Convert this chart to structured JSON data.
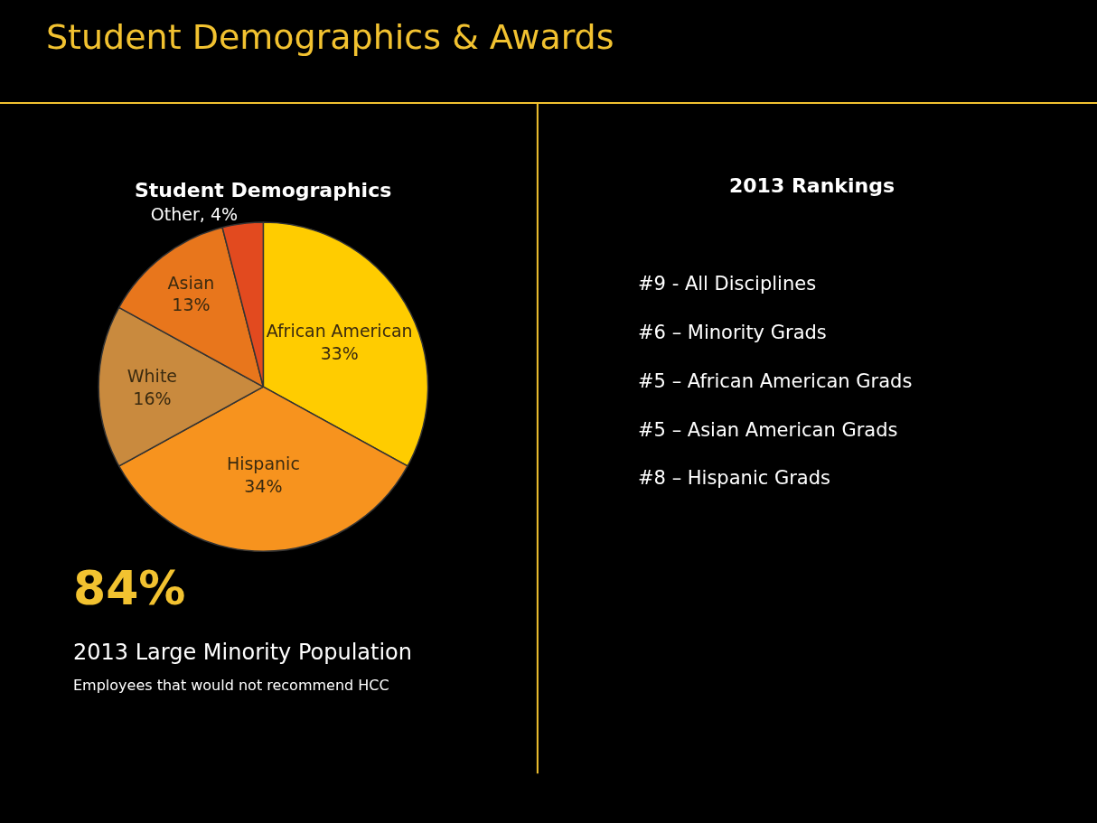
{
  "chart_data": [
    {
      "type": "other",
      "title": "Student Demographics & Awards"
    },
    {
      "type": "pie",
      "title": "Student Demographics",
      "categories": [
        "African American",
        "Hispanic",
        "White",
        "Asian",
        "Other"
      ],
      "values": [
        33,
        34,
        16,
        13,
        4
      ],
      "colors": [
        "#ffcc00",
        "#f7931e",
        "#c98a3e",
        "#e8761c",
        "#e24a1f"
      ],
      "value_labels": [
        "33%",
        "34%",
        "16%",
        "13%",
        "4%"
      ],
      "annotations": [
        "84%",
        "2013 Large Minority Population",
        "Employees that would not recommend HCC"
      ]
    },
    {
      "type": "other",
      "title": "2013 Rankings",
      "annotations": [
        "#9 - All Disciplines",
        "#6 – Minority Grads",
        "#5 – African American Grads",
        "#5 – Asian American Grads",
        "#8 – Hispanic Grads"
      ]
    }
  ]
}
